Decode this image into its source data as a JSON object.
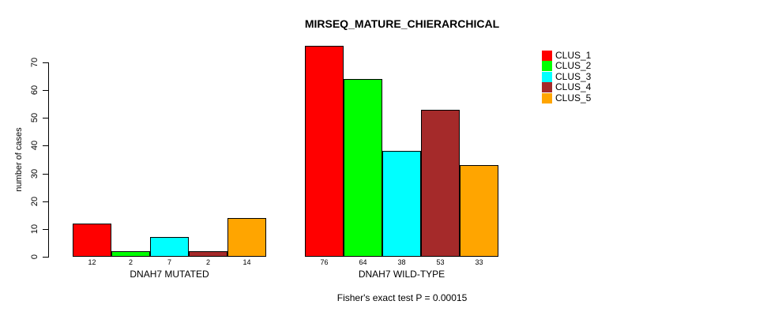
{
  "title": "MIRSEQ_MATURE_CHIERARCHICAL",
  "subtitle": "Fisher's exact test P = 0.00015",
  "chart_data": {
    "type": "bar",
    "title": "MIRSEQ_MATURE_CHIERARCHICAL",
    "xlabel": "",
    "ylabel": "number of cases",
    "ylim": [
      0,
      70
    ],
    "yticks": [
      0,
      10,
      20,
      30,
      40,
      50,
      60,
      70
    ],
    "grid": false,
    "bar_value_labels_shown": true,
    "legend_position": "top-right",
    "annotation": "Fisher's exact test P = 0.00015",
    "categories": [
      "DNAH7 MUTATED",
      "DNAH7 WILD-TYPE"
    ],
    "series": [
      {
        "name": "CLUS_1",
        "color": "#FF0000",
        "values": [
          12,
          76
        ]
      },
      {
        "name": "CLUS_2",
        "color": "#00FF00",
        "values": [
          2,
          64
        ]
      },
      {
        "name": "CLUS_3",
        "color": "#00FFFF",
        "values": [
          7,
          38
        ]
      },
      {
        "name": "CLUS_4",
        "color": "#A52A2A",
        "values": [
          2,
          53
        ]
      },
      {
        "name": "CLUS_5",
        "color": "#FFA500",
        "values": [
          14,
          33
        ]
      }
    ]
  }
}
